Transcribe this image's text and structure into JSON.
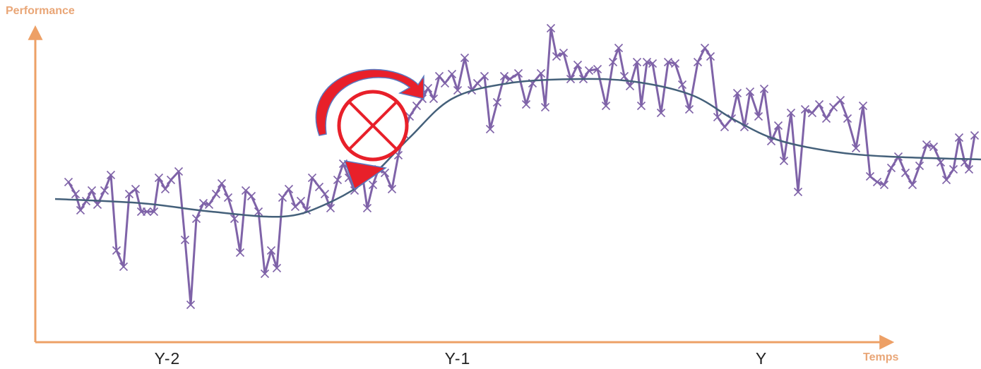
{
  "chart_data": {
    "type": "line",
    "ylabel": "Performance",
    "xlabel": "Temps",
    "xlim": [
      0,
      134
    ],
    "ylim": [
      0,
      90
    ],
    "xticks": [
      {
        "value": 18.7,
        "label": "Y-2"
      },
      {
        "value": 59.8,
        "label": "Y-1"
      },
      {
        "value": 102.8,
        "label": "Y"
      }
    ],
    "series": [
      {
        "color": "#7f63a8",
        "markers": true,
        "x": [
          4.7,
          5.7,
          6.4,
          7.2,
          8,
          8.8,
          9.8,
          10.7,
          11.5,
          12.5,
          13.3,
          14.2,
          15,
          15.8,
          16.8,
          17.5,
          18.4,
          19.2,
          20.3,
          21.2,
          22,
          22.8,
          23.8,
          24.6,
          25.6,
          26.4,
          27.3,
          28.2,
          29,
          29.8,
          30.6,
          31.6,
          32.5,
          33.4,
          34.2,
          35,
          35.9,
          36.8,
          37.6,
          38.4,
          39.2,
          40.2,
          41,
          41.8,
          42.8,
          43.6,
          44.4,
          45.2,
          46.2,
          47,
          47.8,
          48.6,
          49.5,
          50.5,
          51.4,
          52.2,
          53,
          54,
          54.8,
          55.6,
          56.4,
          57.2,
          58,
          59,
          59.8,
          60.8,
          61.8,
          62.6,
          63.6,
          64.4,
          65.4,
          66.4,
          67.2,
          68.4,
          69.5,
          70.4,
          71.6,
          72.2,
          73,
          73.8,
          74.8,
          75.8,
          76.8,
          77.6,
          78.4,
          79.6,
          80.8,
          81.8,
          82.6,
          83.4,
          84.2,
          85.2,
          85.8,
          86.6,
          87.4,
          88.6,
          89.6,
          90.6,
          91.6,
          92.6,
          93.8,
          94.8,
          95.6,
          96.6,
          97.6,
          98.6,
          99.4,
          100.4,
          101.2,
          102.4,
          103.2,
          104.2,
          105.2,
          106,
          107,
          108,
          109,
          110,
          111,
          112,
          113,
          114,
          115,
          116.2,
          117.2,
          118.2,
          119.2,
          120.2,
          121.2,
          122.2,
          123.2,
          124.2,
          125.2,
          126.2,
          127.2,
          128.2,
          129,
          130,
          130.8,
          131.6,
          132.2,
          133
        ],
        "values": [
          45.4,
          42,
          37.4,
          40,
          43,
          39,
          43,
          47.4,
          26,
          21.4,
          42,
          43.4,
          37,
          37,
          37,
          46.6,
          43.4,
          46,
          48.4,
          29,
          10.6,
          35,
          39.4,
          39,
          42,
          45,
          41,
          35,
          25.4,
          43,
          41.4,
          37,
          19.4,
          26,
          21,
          41,
          43.4,
          38.4,
          40,
          37.4,
          46.6,
          44,
          42,
          38,
          46,
          50.6,
          46.6,
          43,
          49,
          38,
          44.6,
          49,
          48,
          43.4,
          53,
          59,
          64,
          67,
          69,
          72,
          69,
          75.4,
          73.4,
          76,
          71.4,
          80.6,
          71.4,
          73.4,
          75.4,
          60.4,
          68,
          75.4,
          74.6,
          76.2,
          67.4,
          73.4,
          76.2,
          66.6,
          89,
          81,
          82,
          74.6,
          78.6,
          74.6,
          77,
          77.4,
          67,
          79.4,
          83.4,
          75.4,
          72.6,
          79.4,
          67,
          79.4,
          79,
          65,
          79.4,
          79,
          73,
          66,
          79.4,
          83.4,
          81,
          63.8,
          61,
          63.4,
          70.6,
          61,
          71,
          64,
          71.8,
          57,
          61.4,
          51.4,
          65,
          42.6,
          66,
          65,
          67.4,
          63.4,
          66.6,
          68.6,
          63.4,
          55,
          67,
          47,
          45.4,
          44.6,
          49.4,
          52.6,
          48,
          44.6,
          50,
          56,
          55.4,
          51,
          46,
          49,
          58,
          51,
          49,
          58.6
        ]
      },
      {
        "color": "#44607a",
        "markers": false,
        "smooth": true,
        "x": [
          2.8,
          15,
          25,
          35,
          41,
          47,
          53,
          59,
          67,
          77,
          85,
          93,
          99,
          105,
          113,
          121,
          133.9
        ],
        "values": [
          40.6,
          39.4,
          37,
          35.6,
          39,
          46,
          58,
          69,
          73.4,
          74.6,
          73.8,
          70,
          63,
          57.4,
          54,
          52.6,
          51.8
        ]
      }
    ]
  }
}
